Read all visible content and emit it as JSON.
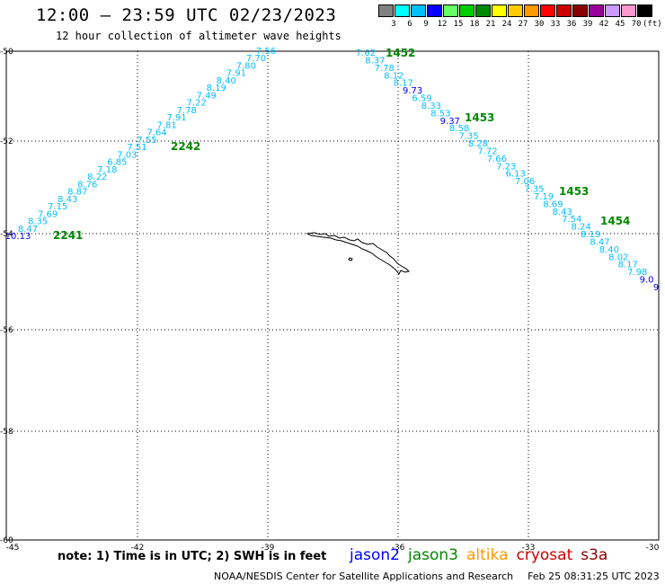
{
  "header": {
    "title": "12:00 – 23:59 UTC 02/23/2023",
    "subtitle": "12 hour collection of altimeter wave heights"
  },
  "legend": {
    "unit": "(ft)",
    "items": [
      {
        "label": "3",
        "color": "#808080"
      },
      {
        "label": "6",
        "color": "#00ffff"
      },
      {
        "label": "9",
        "color": "#00bfff"
      },
      {
        "label": "12",
        "color": "#0000ff"
      },
      {
        "label": "15",
        "color": "#66ff66"
      },
      {
        "label": "18",
        "color": "#00cc00"
      },
      {
        "label": "21",
        "color": "#008800"
      },
      {
        "label": "24",
        "color": "#ffff00"
      },
      {
        "label": "27",
        "color": "#ffcc00"
      },
      {
        "label": "30",
        "color": "#ff9900"
      },
      {
        "label": "33",
        "color": "#ff0000"
      },
      {
        "label": "36",
        "color": "#cc0000"
      },
      {
        "label": "39",
        "color": "#880000"
      },
      {
        "label": "42",
        "color": "#990099"
      },
      {
        "label": "45",
        "color": "#cc99ff"
      },
      {
        "label": "70",
        "color": "#ff99cc"
      },
      {
        "label": "",
        "color": "#000000"
      }
    ]
  },
  "axes": {
    "lon_ticks": [
      "-45",
      "-42",
      "-39",
      "-36",
      "-33",
      "-30"
    ],
    "lat_ticks": [
      "-50",
      "-52",
      "-54",
      "-56",
      "-58",
      "-60"
    ]
  },
  "tracks": [
    {
      "id": "left",
      "points": [
        {
          "t": "10.13",
          "c": "#0000ff"
        },
        {
          "t": "8.47",
          "c": "#00bfff"
        },
        {
          "t": "8.35",
          "c": "#00bfff"
        },
        {
          "t": "7.69",
          "c": "#00bfff"
        },
        {
          "t": "7.15",
          "c": "#00bfff"
        },
        {
          "t": "8.43",
          "c": "#00bfff"
        },
        {
          "t": "8.87",
          "c": "#00bfff"
        },
        {
          "t": "8.76",
          "c": "#00bfff"
        },
        {
          "t": "8.22",
          "c": "#00bfff"
        },
        {
          "t": "7.18",
          "c": "#00bfff"
        },
        {
          "t": "6.85",
          "c": "#00bfff"
        },
        {
          "t": "7.03",
          "c": "#00bfff"
        },
        {
          "t": "7.51",
          "c": "#00bfff"
        },
        {
          "t": "7.55",
          "c": "#00bfff"
        },
        {
          "t": "7.64",
          "c": "#00bfff"
        },
        {
          "t": "7.81",
          "c": "#00bfff"
        },
        {
          "t": "7.91",
          "c": "#00bfff"
        },
        {
          "t": "7.78",
          "c": "#00bfff"
        },
        {
          "t": "7.22",
          "c": "#00bfff"
        },
        {
          "t": "7.49",
          "c": "#00bfff"
        },
        {
          "t": "8.19",
          "c": "#00bfff"
        },
        {
          "t": "8.40",
          "c": "#00bfff"
        },
        {
          "t": "7.91",
          "c": "#00bfff"
        },
        {
          "t": "7.80",
          "c": "#00bfff"
        },
        {
          "t": "7.70",
          "c": "#00bfff"
        },
        {
          "t": "7.56",
          "c": "#00bfff"
        }
      ]
    },
    {
      "id": "right",
      "points": [
        {
          "t": "7.62",
          "c": "#00bfff"
        },
        {
          "t": "8.37",
          "c": "#00bfff"
        },
        {
          "t": "7.78",
          "c": "#00bfff"
        },
        {
          "t": "8.12",
          "c": "#00bfff"
        },
        {
          "t": "8.17",
          "c": "#00bfff"
        },
        {
          "t": "9.73",
          "c": "#0000ff"
        },
        {
          "t": "6.59",
          "c": "#00bfff"
        },
        {
          "t": "8.33",
          "c": "#00bfff"
        },
        {
          "t": "8.53",
          "c": "#00bfff"
        },
        {
          "t": "9.37",
          "c": "#0000ff"
        },
        {
          "t": "8.58",
          "c": "#00bfff"
        },
        {
          "t": "7.35",
          "c": "#00bfff"
        },
        {
          "t": "8.28",
          "c": "#00bfff"
        },
        {
          "t": "7.72",
          "c": "#00bfff"
        },
        {
          "t": "7.66",
          "c": "#00bfff"
        },
        {
          "t": "7.23",
          "c": "#00bfff"
        },
        {
          "t": "6.13",
          "c": "#00bfff"
        },
        {
          "t": "7.06",
          "c": "#00bfff"
        },
        {
          "t": "7.35",
          "c": "#00bfff"
        },
        {
          "t": "7.19",
          "c": "#00bfff"
        },
        {
          "t": "8.69",
          "c": "#00bfff"
        },
        {
          "t": "8.43",
          "c": "#00bfff"
        },
        {
          "t": "7.54",
          "c": "#00bfff"
        },
        {
          "t": "8.24",
          "c": "#00bfff"
        },
        {
          "t": "8.19",
          "c": "#00bfff"
        },
        {
          "t": "8.47",
          "c": "#00bfff"
        },
        {
          "t": "8.40",
          "c": "#00bfff"
        },
        {
          "t": "8.02",
          "c": "#00bfff"
        },
        {
          "t": "8.17",
          "c": "#00bfff"
        },
        {
          "t": "7.98",
          "c": "#00bfff"
        },
        {
          "t": "9.0",
          "c": "#0000ff"
        },
        {
          "t": "9",
          "c": "#0000ff"
        }
      ]
    }
  ],
  "time_labels": [
    {
      "t": "1452",
      "color": "#008800"
    },
    {
      "t": "1453",
      "color": "#008800"
    },
    {
      "t": "1453",
      "color": "#008800"
    },
    {
      "t": "1454",
      "color": "#008800"
    },
    {
      "t": "2242",
      "color": "#008800"
    },
    {
      "t": "2241",
      "color": "#008800"
    }
  ],
  "footer": {
    "note": "note:  1) Time is in UTC;  2) SWH is in feet",
    "missions": [
      {
        "name": "jason2",
        "color": "#0000ff"
      },
      {
        "name": "jason3",
        "color": "#008800"
      },
      {
        "name": "altika",
        "color": "#ff9900"
      },
      {
        "name": "cryosat",
        "color": "#cc0000"
      },
      {
        "name": "s3a",
        "color": "#880000"
      }
    ],
    "credit": "NOAA/NESDIS Center for Satellite Applications and Research",
    "timestamp": "Feb 25 08:31:25 UTC 2023"
  }
}
